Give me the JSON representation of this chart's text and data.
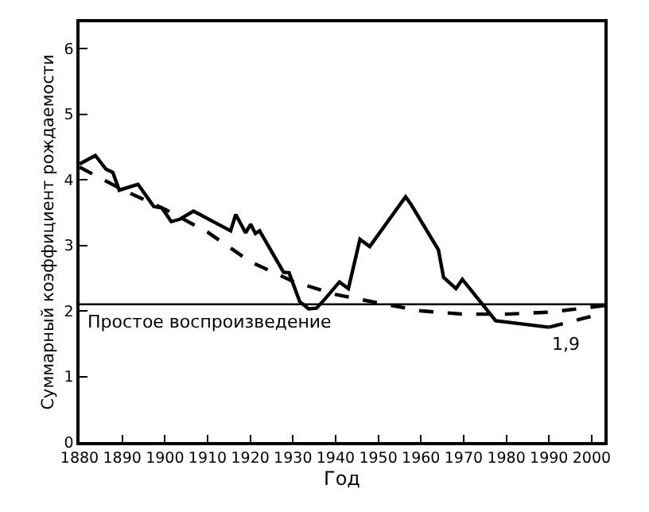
{
  "chart_data": {
    "type": "line",
    "xlabel": "Год",
    "ylabel": "Суммарный коэффициент рождаемости",
    "xlim": [
      1880,
      2003
    ],
    "ylim": [
      0,
      6.4
    ],
    "xticks": [
      1880,
      1890,
      1900,
      1910,
      1920,
      1930,
      1940,
      1950,
      1960,
      1970,
      1980,
      1990,
      2000
    ],
    "yticks": [
      0,
      1,
      2,
      3,
      4,
      5,
      6
    ],
    "legend": false,
    "marker": "none",
    "series": [
      {
        "color": "#000000",
        "line_style": "solid",
        "x": [
          1880,
          1883.7,
          1886.2,
          1887.8,
          1889.3,
          1893.7,
          1897.4,
          1899.3,
          1901.5,
          1903.6,
          1906.7,
          1915.4,
          1916.6,
          1918.9,
          1920.1,
          1921.2,
          1922.2,
          1927.8,
          1929.1,
          1931.6,
          1933.7,
          1935.5,
          1937.5,
          1940.9,
          1943,
          1945.7,
          1948,
          1956.4,
          1957.6,
          1964.1,
          1965.3,
          1968.2,
          1969.7,
          1977.5,
          1990
        ],
        "values": [
          4.24,
          4.37,
          4.16,
          4.11,
          3.84,
          3.93,
          3.59,
          3.57,
          3.36,
          3.4,
          3.52,
          3.22,
          3.47,
          3.19,
          3.32,
          3.18,
          3.22,
          2.59,
          2.58,
          2.14,
          2.03,
          2.04,
          2.18,
          2.44,
          2.34,
          3.09,
          2.98,
          3.74,
          3.63,
          2.93,
          2.51,
          2.34,
          2.48,
          1.85,
          1.75
        ]
      },
      {
        "color": "#000000",
        "line_style": "dashed",
        "x": [
          1880,
          1890,
          1900,
          1910,
          1920,
          1930,
          1940,
          1950,
          1960,
          1970,
          1980,
          1990,
          2003
        ],
        "values": [
          4.19,
          3.85,
          3.55,
          3.2,
          2.75,
          2.45,
          2.25,
          2.12,
          2.0,
          1.95,
          1.95,
          1.98,
          2.08
        ]
      },
      {
        "color": "#000000",
        "line_style": "dashed",
        "x": [
          1990,
          2003
        ],
        "values": [
          1.75,
          1.97
        ]
      }
    ],
    "ref_lines": [
      {
        "axis": "y",
        "value": 2.1,
        "label": "Простое воспроизведение",
        "color": "#000000",
        "line_style": "solid"
      }
    ],
    "annotations": [
      {
        "text": "1,9",
        "x": 1990,
        "y": 1.75
      }
    ]
  }
}
